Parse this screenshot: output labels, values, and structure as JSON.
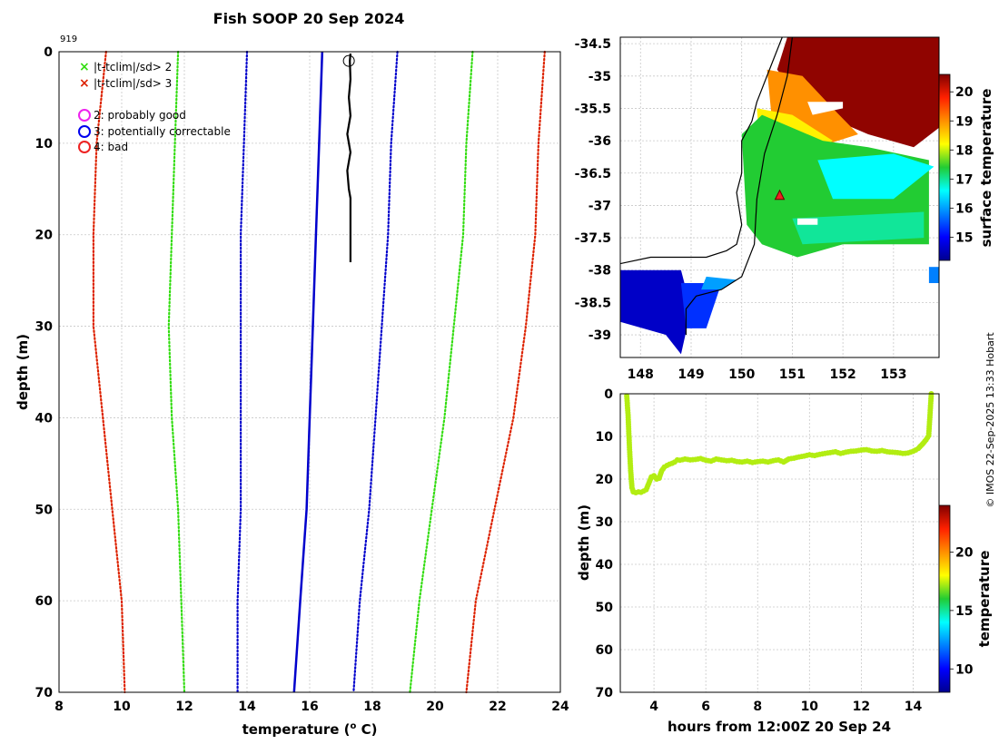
{
  "title": "Fish SOOP 20 Sep 2024",
  "profile_id": "919",
  "credit": "© IMOS 22-Sep-2025 13:33 Hobart",
  "colors": {
    "sd2_line": "#33dd11",
    "sd3_line": "#dd2200",
    "sd1_line": "#0000cc",
    "mean_line": "#0000cc",
    "profile": "#000000",
    "grid": "#c8c8c8",
    "marker": "#ee2222"
  },
  "legend": {
    "sd2": "|t-tclim|/sd> 2",
    "sd3": "|t-tclim|/sd> 3",
    "flag2": "2: probably good",
    "flag3": "3: potentially correctable",
    "flag4": "4: bad"
  },
  "chart_data": [
    {
      "type": "line",
      "name": "profile",
      "title": "Fish SOOP 20 Sep 2024",
      "xlabel_main": "temperature (",
      "xlabel_sup": "o",
      "xlabel_end": " C)",
      "ylabel": "depth (m)",
      "xlim": [
        8,
        24
      ],
      "ylim": [
        70,
        0
      ],
      "xticks": [
        8,
        10,
        12,
        14,
        16,
        18,
        20,
        22,
        24
      ],
      "yticks": [
        0,
        10,
        20,
        30,
        40,
        50,
        60,
        70
      ],
      "series": [
        {
          "name": "clim -3sd",
          "style": "dotted",
          "color": "#dd2200",
          "points": [
            [
              9.5,
              0
            ],
            [
              9.2,
              10
            ],
            [
              9.1,
              20
            ],
            [
              9.1,
              30
            ],
            [
              9.4,
              40
            ],
            [
              9.7,
              50
            ],
            [
              10.0,
              60
            ],
            [
              10.1,
              70
            ]
          ]
        },
        {
          "name": "clim -2sd",
          "style": "dotted",
          "color": "#33dd11",
          "points": [
            [
              11.8,
              0
            ],
            [
              11.7,
              10
            ],
            [
              11.6,
              20
            ],
            [
              11.5,
              30
            ],
            [
              11.6,
              40
            ],
            [
              11.8,
              50
            ],
            [
              11.9,
              60
            ],
            [
              12.0,
              70
            ]
          ]
        },
        {
          "name": "clim -1sd",
          "style": "dotted",
          "color": "#0000cc",
          "points": [
            [
              14.0,
              0
            ],
            [
              13.9,
              10
            ],
            [
              13.8,
              20
            ],
            [
              13.8,
              30
            ],
            [
              13.8,
              40
            ],
            [
              13.8,
              50
            ],
            [
              13.7,
              60
            ],
            [
              13.7,
              70
            ]
          ]
        },
        {
          "name": "clim mean",
          "style": "solid",
          "color": "#0000cc",
          "points": [
            [
              16.4,
              0
            ],
            [
              16.3,
              10
            ],
            [
              16.2,
              20
            ],
            [
              16.1,
              30
            ],
            [
              16.0,
              40
            ],
            [
              15.9,
              50
            ],
            [
              15.7,
              60
            ],
            [
              15.5,
              70
            ]
          ]
        },
        {
          "name": "clim +1sd",
          "style": "dotted",
          "color": "#0000cc",
          "points": [
            [
              18.8,
              0
            ],
            [
              18.6,
              10
            ],
            [
              18.5,
              20
            ],
            [
              18.3,
              30
            ],
            [
              18.1,
              40
            ],
            [
              17.9,
              50
            ],
            [
              17.6,
              60
            ],
            [
              17.4,
              70
            ]
          ]
        },
        {
          "name": "clim +2sd",
          "style": "dotted",
          "color": "#33dd11",
          "points": [
            [
              21.2,
              0
            ],
            [
              21.0,
              10
            ],
            [
              20.9,
              20
            ],
            [
              20.6,
              30
            ],
            [
              20.3,
              40
            ],
            [
              19.9,
              50
            ],
            [
              19.5,
              60
            ],
            [
              19.2,
              70
            ]
          ]
        },
        {
          "name": "clim +3sd",
          "style": "dotted",
          "color": "#dd2200",
          "points": [
            [
              23.5,
              0
            ],
            [
              23.3,
              10
            ],
            [
              23.2,
              20
            ],
            [
              22.9,
              30
            ],
            [
              22.5,
              40
            ],
            [
              21.9,
              50
            ],
            [
              21.3,
              60
            ],
            [
              21.0,
              70
            ]
          ]
        },
        {
          "name": "observed",
          "style": "solid",
          "color": "#000000",
          "width": 2.2,
          "points": [
            [
              17.3,
              0.2
            ],
            [
              17.28,
              1
            ],
            [
              17.3,
              3
            ],
            [
              17.25,
              5
            ],
            [
              17.3,
              7
            ],
            [
              17.2,
              9
            ],
            [
              17.3,
              11
            ],
            [
              17.2,
              13
            ],
            [
              17.25,
              15
            ],
            [
              17.3,
              16
            ],
            [
              17.3,
              18
            ],
            [
              17.3,
              20
            ],
            [
              17.3,
              22
            ],
            [
              17.3,
              23
            ]
          ]
        }
      ],
      "flag_marker": {
        "x": 17.25,
        "y": 1.0
      }
    },
    {
      "type": "heatmap",
      "name": "sst-map",
      "colorbar_label": "surface temperature",
      "xlim": [
        147.6,
        153.9
      ],
      "ylim": [
        -39.35,
        -34.4
      ],
      "xticks": [
        148,
        149,
        150,
        151,
        152,
        153
      ],
      "yticks": [
        -34.5,
        -35,
        -35.5,
        -36,
        -36.5,
        -37,
        -37.5,
        -38,
        -38.5,
        -39
      ],
      "cbar_range": [
        14.2,
        20.6
      ],
      "cbar_ticks": [
        15,
        16,
        17,
        18,
        19,
        20
      ],
      "station": {
        "lon": 150.75,
        "lat": -36.85
      },
      "regions": [
        {
          "temp": 20.5,
          "poly": [
            [
              151.3,
              -34.4
            ],
            [
              153.9,
              -34.4
            ],
            [
              153.9,
              -35.8
            ],
            [
              153.4,
              -36.1
            ],
            [
              152.5,
              -35.9
            ],
            [
              151.6,
              -35.6
            ],
            [
              151.0,
              -35.2
            ],
            [
              150.7,
              -34.9
            ],
            [
              150.9,
              -34.4
            ]
          ]
        },
        {
          "temp": 19.0,
          "poly": [
            [
              150.5,
              -34.9
            ],
            [
              151.2,
              -35.0
            ],
            [
              151.8,
              -35.5
            ],
            [
              152.3,
              -35.9
            ],
            [
              151.5,
              -36.1
            ],
            [
              150.6,
              -35.7
            ]
          ]
        },
        {
          "temp": 18.3,
          "poly": [
            [
              150.3,
              -35.5
            ],
            [
              151.0,
              -35.6
            ],
            [
              151.8,
              -36.0
            ],
            [
              151.2,
              -36.3
            ],
            [
              150.4,
              -36.5
            ]
          ]
        },
        {
          "temp": 17.4,
          "poly": [
            [
              150.0,
              -35.9
            ],
            [
              150.4,
              -35.6
            ],
            [
              151.6,
              -36.0
            ],
            [
              152.5,
              -36.1
            ],
            [
              153.7,
              -36.3
            ],
            [
              153.7,
              -37.6
            ],
            [
              152.0,
              -37.6
            ],
            [
              151.1,
              -37.8
            ],
            [
              150.4,
              -37.6
            ],
            [
              150.1,
              -37.3
            ]
          ]
        },
        {
          "temp": 16.6,
          "poly": [
            [
              151.5,
              -36.3
            ],
            [
              153.0,
              -36.2
            ],
            [
              153.8,
              -36.4
            ],
            [
              153.0,
              -36.9
            ],
            [
              151.8,
              -36.9
            ]
          ]
        },
        {
          "temp": 17.0,
          "poly": [
            [
              151.0,
              -37.2
            ],
            [
              153.6,
              -37.1
            ],
            [
              153.6,
              -37.5
            ],
            [
              151.2,
              -37.6
            ]
          ]
        },
        {
          "temp": 14.6,
          "poly": [
            [
              147.6,
              -38.0
            ],
            [
              148.8,
              -38.0
            ],
            [
              149.0,
              -38.6
            ],
            [
              148.8,
              -39.3
            ],
            [
              148.5,
              -39.0
            ],
            [
              147.6,
              -38.8
            ]
          ]
        },
        {
          "temp": 15.3,
          "poly": [
            [
              148.8,
              -38.2
            ],
            [
              149.6,
              -38.2
            ],
            [
              149.3,
              -38.9
            ],
            [
              148.9,
              -38.9
            ]
          ]
        },
        {
          "temp": 16.0,
          "poly": [
            [
              149.3,
              -38.1
            ],
            [
              149.9,
              -38.15
            ],
            [
              149.6,
              -38.3
            ],
            [
              149.2,
              -38.3
            ]
          ]
        },
        {
          "temp": 15.8,
          "poly": [
            [
              153.7,
              -37.95
            ],
            [
              153.9,
              -37.95
            ],
            [
              153.9,
              -38.2
            ],
            [
              153.7,
              -38.2
            ]
          ]
        }
      ],
      "holes": [
        {
          "poly": [
            [
              151.3,
              -35.4
            ],
            [
              152.0,
              -35.4
            ],
            [
              152.0,
              -35.5
            ],
            [
              151.4,
              -35.6
            ]
          ]
        },
        {
          "poly": [
            [
              151.1,
              -37.2
            ],
            [
              151.5,
              -37.2
            ],
            [
              151.5,
              -37.3
            ],
            [
              151.1,
              -37.3
            ]
          ]
        }
      ],
      "coast": [
        [
          150.8,
          -34.4
        ],
        [
          150.6,
          -34.8
        ],
        [
          150.3,
          -35.4
        ],
        [
          150.2,
          -35.7
        ],
        [
          150.0,
          -36.0
        ],
        [
          150.0,
          -36.5
        ],
        [
          149.9,
          -36.8
        ],
        [
          150.0,
          -37.3
        ],
        [
          149.9,
          -37.6
        ],
        [
          149.7,
          -37.7
        ],
        [
          149.3,
          -37.8
        ],
        [
          148.8,
          -37.8
        ],
        [
          148.2,
          -37.8
        ],
        [
          147.6,
          -37.9
        ]
      ],
      "coast2": [
        [
          151.0,
          -34.4
        ],
        [
          150.9,
          -35.0
        ],
        [
          150.7,
          -35.6
        ],
        [
          150.45,
          -36.2
        ],
        [
          150.3,
          -36.9
        ],
        [
          150.25,
          -37.6
        ],
        [
          150.0,
          -38.1
        ],
        [
          149.6,
          -38.3
        ],
        [
          149.1,
          -38.4
        ],
        [
          148.9,
          -38.6
        ],
        [
          148.9,
          -39.0
        ]
      ]
    },
    {
      "type": "scatter",
      "name": "depth-time",
      "xlabel": "hours from 12:00Z 20 Sep 24",
      "ylabel": "depth (m)",
      "colorbar_label": "temperature",
      "xlim": [
        2.7,
        15.0
      ],
      "ylim": [
        70,
        0
      ],
      "xticks": [
        4,
        6,
        8,
        10,
        12,
        14
      ],
      "yticks": [
        0,
        10,
        20,
        30,
        40,
        50,
        60,
        70
      ],
      "cbar_range": [
        8,
        24
      ],
      "cbar_ticks": [
        10,
        15,
        20
      ],
      "point_temp": 17.3,
      "x": [
        2.95,
        3.0,
        3.05,
        3.1,
        3.15,
        3.2,
        3.3,
        3.4,
        3.5,
        3.6,
        3.7,
        3.8,
        3.9,
        4.0,
        4.1,
        4.2,
        4.3,
        4.4,
        4.5,
        4.6,
        4.7,
        4.8,
        4.9,
        5.0,
        5.2,
        5.4,
        5.6,
        5.8,
        6.0,
        6.2,
        6.4,
        6.6,
        6.8,
        7.0,
        7.2,
        7.4,
        7.6,
        7.8,
        8.0,
        8.2,
        8.4,
        8.6,
        8.8,
        9.0,
        9.2,
        9.4,
        9.6,
        9.8,
        10.0,
        10.2,
        10.4,
        10.6,
        10.8,
        11.0,
        11.2,
        11.4,
        11.6,
        11.8,
        12.0,
        12.2,
        12.4,
        12.6,
        12.8,
        13.0,
        13.2,
        13.4,
        13.6,
        13.8,
        14.0,
        14.1,
        14.2,
        14.3,
        14.4,
        14.5,
        14.6,
        14.65,
        14.7
      ],
      "y": [
        0.5,
        5,
        12,
        18,
        22,
        23,
        23.2,
        23,
        23.1,
        22.8,
        22.5,
        21,
        19.5,
        19.2,
        20,
        19.8,
        18,
        17.2,
        16.8,
        16.5,
        16.3,
        16,
        15.5,
        15.6,
        15.3,
        15.5,
        15.4,
        15.2,
        15.6,
        15.8,
        15.3,
        15.5,
        15.7,
        15.6,
        15.9,
        16,
        15.8,
        16.1,
        15.9,
        15.8,
        16,
        15.7,
        15.5,
        16,
        15.3,
        15.1,
        14.8,
        14.6,
        14.3,
        14.5,
        14.2,
        14,
        13.8,
        13.6,
        14,
        13.7,
        13.5,
        13.4,
        13.2,
        13.1,
        13.4,
        13.5,
        13.3,
        13.6,
        13.7,
        13.8,
        14,
        13.9,
        13.5,
        13.2,
        12.8,
        12.2,
        11.5,
        10.8,
        9.8,
        5,
        0
      ]
    }
  ]
}
